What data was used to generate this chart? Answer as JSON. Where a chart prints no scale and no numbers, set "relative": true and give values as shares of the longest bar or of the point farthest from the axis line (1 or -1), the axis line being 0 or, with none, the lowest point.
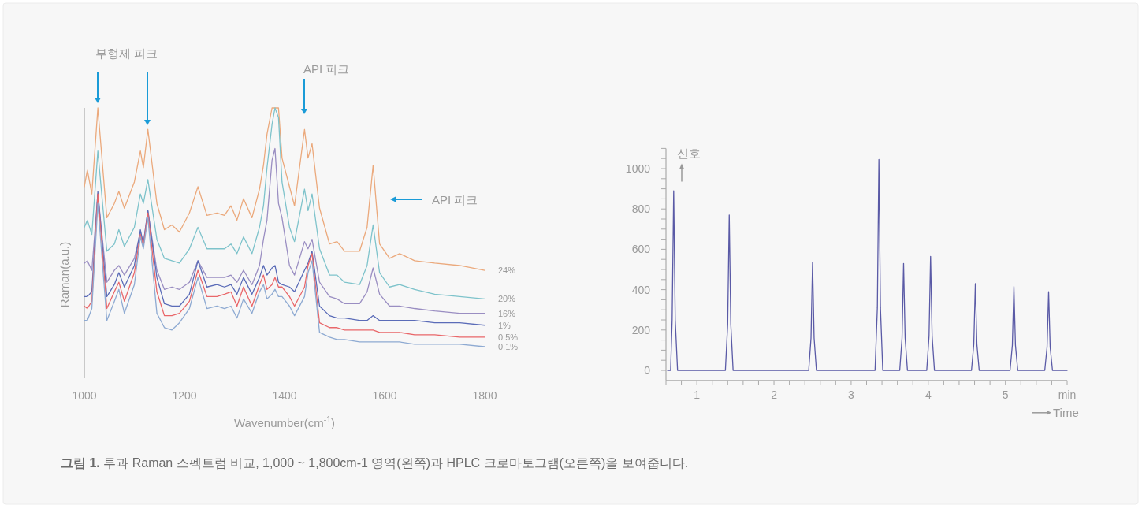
{
  "chart_data": [
    {
      "type": "line",
      "relative": true,
      "tick_labels": "x",
      "xlabel": "Wavenumber(cm$^{-1}$)",
      "ylabel": "Raman(a.u.)",
      "xlim": [
        1000,
        1800
      ],
      "xticks": [
        1000,
        1200,
        1400,
        1600,
        1800
      ],
      "x": [
        1000,
        1006,
        1015,
        1027,
        1045,
        1060,
        1069,
        1080,
        1100,
        1112,
        1118,
        1127,
        1145,
        1160,
        1175,
        1190,
        1210,
        1227,
        1245,
        1265,
        1280,
        1293,
        1305,
        1318,
        1335,
        1350,
        1358,
        1365,
        1375,
        1381,
        1388,
        1395,
        1410,
        1420,
        1440,
        1447,
        1455,
        1470,
        1490,
        1505,
        1520,
        1550,
        1565,
        1577,
        1590,
        1610,
        1630,
        1660,
        1700,
        1750,
        1800
      ],
      "series": [
        {
          "name": "24%",
          "color": "#eba97c",
          "values": [
            0.67,
            0.74,
            0.64,
            1,
            0.54,
            0.6,
            0.65,
            0.58,
            0.69,
            0.82,
            0.75,
            0.91,
            0.6,
            0.49,
            0.51,
            0.48,
            0.56,
            0.67,
            0.55,
            0.56,
            0.55,
            0.59,
            0.53,
            0.62,
            0.54,
            0.66,
            0.76,
            0.89,
            1,
            1,
            1,
            0.79,
            0.67,
            0.59,
            0.91,
            0.79,
            0.85,
            0.58,
            0.43,
            0.44,
            0.4,
            0.4,
            0.5,
            0.76,
            0.43,
            0.37,
            0.39,
            0.36,
            0.35,
            0.34,
            0.32
          ]
        },
        {
          "name": "20%",
          "color": "#7ec3cb",
          "values": [
            0.5,
            0.53,
            0.47,
            0.82,
            0.4,
            0.43,
            0.49,
            0.42,
            0.5,
            0.64,
            0.6,
            0.7,
            0.45,
            0.37,
            0.36,
            0.35,
            0.41,
            0.5,
            0.41,
            0.41,
            0.41,
            0.43,
            0.39,
            0.46,
            0.39,
            0.5,
            0.59,
            0.75,
            0.93,
            1,
            0.96,
            0.69,
            0.5,
            0.44,
            0.66,
            0.57,
            0.64,
            0.41,
            0.3,
            0.3,
            0.27,
            0.26,
            0.34,
            0.51,
            0.31,
            0.25,
            0.26,
            0.24,
            0.22,
            0.21,
            0.2
          ]
        },
        {
          "name": "16%",
          "color": "#9a8ec2",
          "values": [
            0.35,
            0.36,
            0.32,
            0.64,
            0.27,
            0.32,
            0.34,
            0.3,
            0.37,
            0.48,
            0.43,
            0.57,
            0.32,
            0.24,
            0.25,
            0.24,
            0.27,
            0.36,
            0.29,
            0.29,
            0.29,
            0.3,
            0.27,
            0.32,
            0.26,
            0.34,
            0.45,
            0.53,
            0.78,
            0.83,
            0.6,
            0.54,
            0.34,
            0.3,
            0.44,
            0.41,
            0.45,
            0.27,
            0.21,
            0.2,
            0.18,
            0.18,
            0.23,
            0.33,
            0.22,
            0.17,
            0.17,
            0.16,
            0.15,
            0.14,
            0.14
          ]
        },
        {
          "name": "1%",
          "color": "#5b6cb8",
          "values": [
            0.21,
            0.21,
            0.23,
            0.65,
            0.21,
            0.26,
            0.31,
            0.25,
            0.34,
            0.49,
            0.43,
            0.57,
            0.29,
            0.18,
            0.17,
            0.17,
            0.22,
            0.36,
            0.25,
            0.26,
            0.25,
            0.26,
            0.22,
            0.29,
            0.22,
            0.29,
            0.34,
            0.3,
            0.33,
            0.34,
            0.27,
            0.26,
            0.25,
            0.23,
            0.32,
            0.35,
            0.4,
            0.17,
            0.13,
            0.12,
            0.12,
            0.11,
            0.11,
            0.13,
            0.11,
            0.11,
            0.11,
            0.11,
            0.1,
            0.1,
            0.09
          ]
        },
        {
          "name": "0.5%",
          "color": "#e9676a",
          "values": [
            0.17,
            0.16,
            0.19,
            0.64,
            0.16,
            0.23,
            0.27,
            0.19,
            0.31,
            0.47,
            0.42,
            0.56,
            0.23,
            0.13,
            0.13,
            0.14,
            0.19,
            0.32,
            0.21,
            0.21,
            0.22,
            0.23,
            0.17,
            0.25,
            0.17,
            0.26,
            0.3,
            0.24,
            0.26,
            0.29,
            0.25,
            0.25,
            0.21,
            0.17,
            0.25,
            0.34,
            0.39,
            0.1,
            0.08,
            0.08,
            0.07,
            0.07,
            0.07,
            0.07,
            0.06,
            0.06,
            0.06,
            0.05,
            0.05,
            0.04,
            0.04
          ]
        },
        {
          "name": "0.1%",
          "color": "#8eaad2",
          "values": [
            0.11,
            0.11,
            0.16,
            0.6,
            0.11,
            0.19,
            0.24,
            0.14,
            0.26,
            0.46,
            0.41,
            0.54,
            0.14,
            0.08,
            0.07,
            0.1,
            0.16,
            0.29,
            0.16,
            0.17,
            0.16,
            0.17,
            0.12,
            0.2,
            0.14,
            0.23,
            0.26,
            0.2,
            0.22,
            0.24,
            0.21,
            0.21,
            0.17,
            0.13,
            0.21,
            0.31,
            0.36,
            0.06,
            0.04,
            0.03,
            0.03,
            0.02,
            0.02,
            0.02,
            0.02,
            0.02,
            0.02,
            0.01,
            0.01,
            0.01,
            0
          ]
        }
      ],
      "annotations": [
        "부형제 피크",
        "API 피크",
        "API 피크",
        "그림 1. 투과 Raman 스펙트럼 비교, 1,000 ~ 1,800cm-1 영역(왼쪽)과 HPLC 크로마토그램(오른쪽)을 보여줍니다."
      ]
    },
    {
      "type": "line",
      "xlabel": "Time",
      "ylabel": "신호",
      "xlim": [
        0.6,
        5.8
      ],
      "ylim": [
        -50,
        1100
      ],
      "xticks": [
        {
          "value": 0.6,
          "label": null
        },
        {
          "value": 0.8,
          "label": null
        },
        1,
        {
          "value": 1.2,
          "label": null
        },
        {
          "value": 1.4,
          "label": null
        },
        {
          "value": 1.6,
          "label": null
        },
        {
          "value": 1.8,
          "label": null
        },
        2,
        {
          "value": 2.2,
          "label": null
        },
        {
          "value": 2.4,
          "label": null
        },
        {
          "value": 2.6,
          "label": null
        },
        {
          "value": 2.8,
          "label": null
        },
        3,
        {
          "value": 3.2,
          "label": null
        },
        {
          "value": 3.4,
          "label": null
        },
        {
          "value": 3.6,
          "label": null
        },
        {
          "value": 3.8,
          "label": null
        },
        4,
        {
          "value": 4.2,
          "label": null
        },
        {
          "value": 4.4,
          "label": null
        },
        {
          "value": 4.6,
          "label": null
        },
        {
          "value": 4.8,
          "label": null
        },
        5,
        {
          "value": 5.2,
          "label": null
        },
        {
          "value": 5.4,
          "label": null
        },
        {
          "value": 5.6,
          "label": null
        },
        {
          "value": 5.8,
          "label": "min"
        }
      ],
      "yticks": [
        0,
        {
          "value": 50,
          "label": null
        },
        {
          "value": 100,
          "label": null
        },
        {
          "value": 150,
          "label": null
        },
        200,
        {
          "value": 250,
          "label": null
        },
        {
          "value": 300,
          "label": null
        },
        {
          "value": 350,
          "label": null
        },
        400,
        {
          "value": 450,
          "label": null
        },
        {
          "value": 500,
          "label": null
        },
        {
          "value": 550,
          "label": null
        },
        600,
        {
          "value": 650,
          "label": null
        },
        {
          "value": 700,
          "label": null
        },
        {
          "value": 750,
          "label": null
        },
        800,
        {
          "value": 850,
          "label": null
        },
        {
          "value": 900,
          "label": null
        },
        {
          "value": 950,
          "label": null
        },
        1000,
        {
          "value": 1050,
          "label": null
        },
        {
          "value": 1100,
          "label": null
        }
      ],
      "series": [
        {
          "color": "#5a5aa6",
          "x": [
            0.62,
            0.66,
            0.68,
            0.7,
            0.72,
            0.75,
            1.37,
            1.4,
            1.42,
            1.44,
            1.47,
            2.45,
            2.48,
            2.5,
            2.52,
            2.55,
            3.31,
            3.34,
            3.36,
            3.38,
            3.41,
            3.63,
            3.66,
            3.68,
            3.7,
            3.73,
            3.98,
            4.01,
            4.03,
            4.05,
            4.08,
            4.56,
            4.59,
            4.61,
            4.63,
            4.66,
            5.06,
            5.09,
            5.11,
            5.13,
            5.16,
            5.51,
            5.54,
            5.56,
            5.58,
            5.61,
            5.8
          ],
          "values": [
            0,
            0,
            250,
            890,
            250,
            0,
            0,
            230,
            770,
            230,
            0,
            0,
            160,
            535,
            160,
            0,
            0,
            310,
            1045,
            310,
            0,
            0,
            160,
            530,
            160,
            0,
            0,
            170,
            565,
            170,
            0,
            0,
            130,
            430,
            130,
            0,
            0,
            125,
            415,
            125,
            0,
            0,
            115,
            390,
            115,
            0,
            0
          ]
        }
      ]
    }
  ]
}
